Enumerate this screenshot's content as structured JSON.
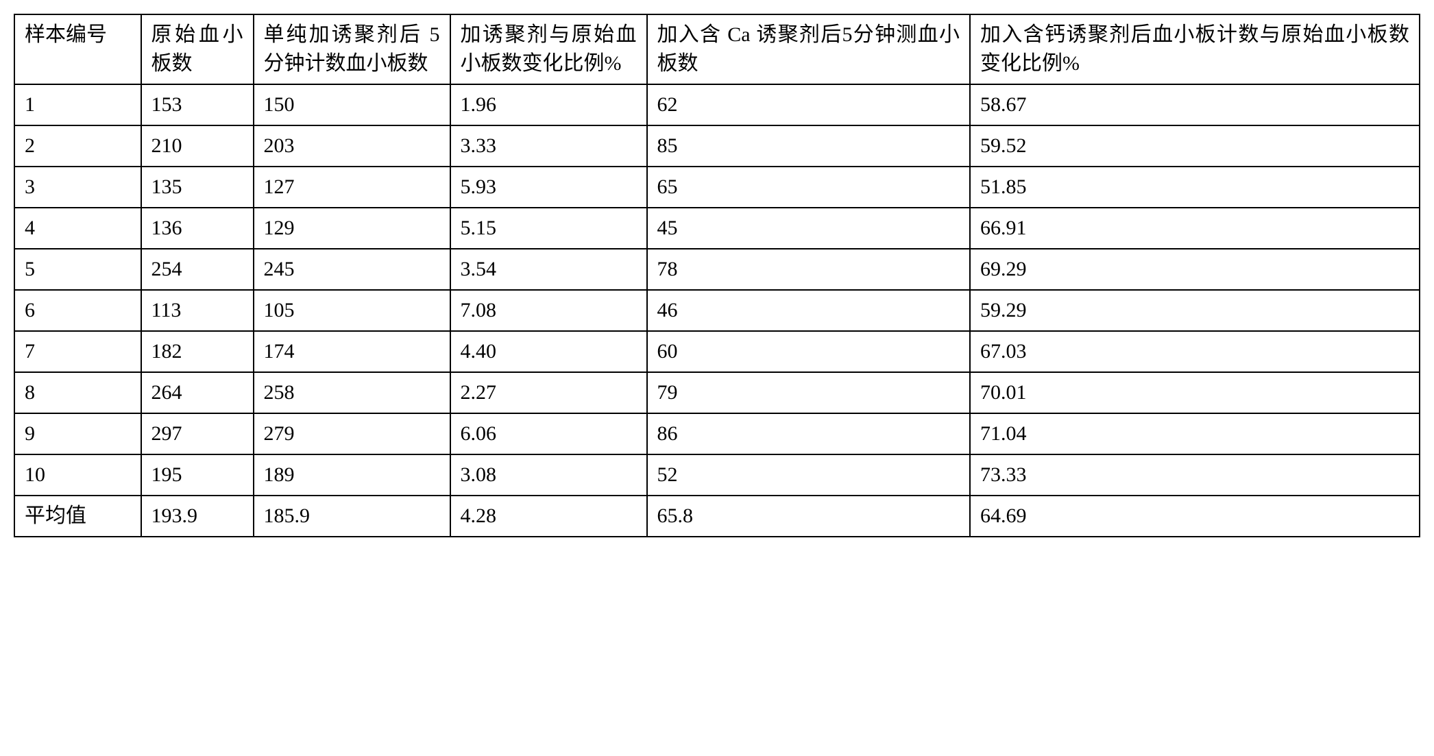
{
  "table": {
    "type": "table",
    "border_color": "#000000",
    "background_color": "#ffffff",
    "text_color": "#000000",
    "font_size": 30,
    "border_width": 2,
    "column_widths_pct": [
      9,
      8,
      14,
      14,
      23,
      32
    ],
    "columns": [
      "样本编号",
      "原始血小板数",
      "单纯加诱聚剂后 5分钟计数血小板数",
      "加诱聚剂与原始血小板数变化比例%",
      "加入含 Ca 诱聚剂后5分钟测血小板数",
      "加入含钙诱聚剂后血小板计数与原始血小板数变化比例%"
    ],
    "rows": [
      [
        "1",
        "153",
        "150",
        "1.96",
        "62",
        "58.67"
      ],
      [
        "2",
        "210",
        "203",
        "3.33",
        "85",
        "59.52"
      ],
      [
        "3",
        "135",
        "127",
        "5.93",
        "65",
        "51.85"
      ],
      [
        "4",
        "136",
        "129",
        "5.15",
        "45",
        "66.91"
      ],
      [
        "5",
        "254",
        "245",
        "3.54",
        "78",
        "69.29"
      ],
      [
        "6",
        "113",
        "105",
        "7.08",
        "46",
        "59.29"
      ],
      [
        "7",
        "182",
        "174",
        "4.40",
        "60",
        "67.03"
      ],
      [
        "8",
        "264",
        "258",
        "2.27",
        "79",
        "70.01"
      ],
      [
        "9",
        "297",
        "279",
        "6.06",
        "86",
        "71.04"
      ],
      [
        "10",
        "195",
        "189",
        "3.08",
        "52",
        "73.33"
      ],
      [
        "平均值",
        "193.9",
        "185.9",
        "4.28",
        "65.8",
        "64.69"
      ]
    ]
  }
}
